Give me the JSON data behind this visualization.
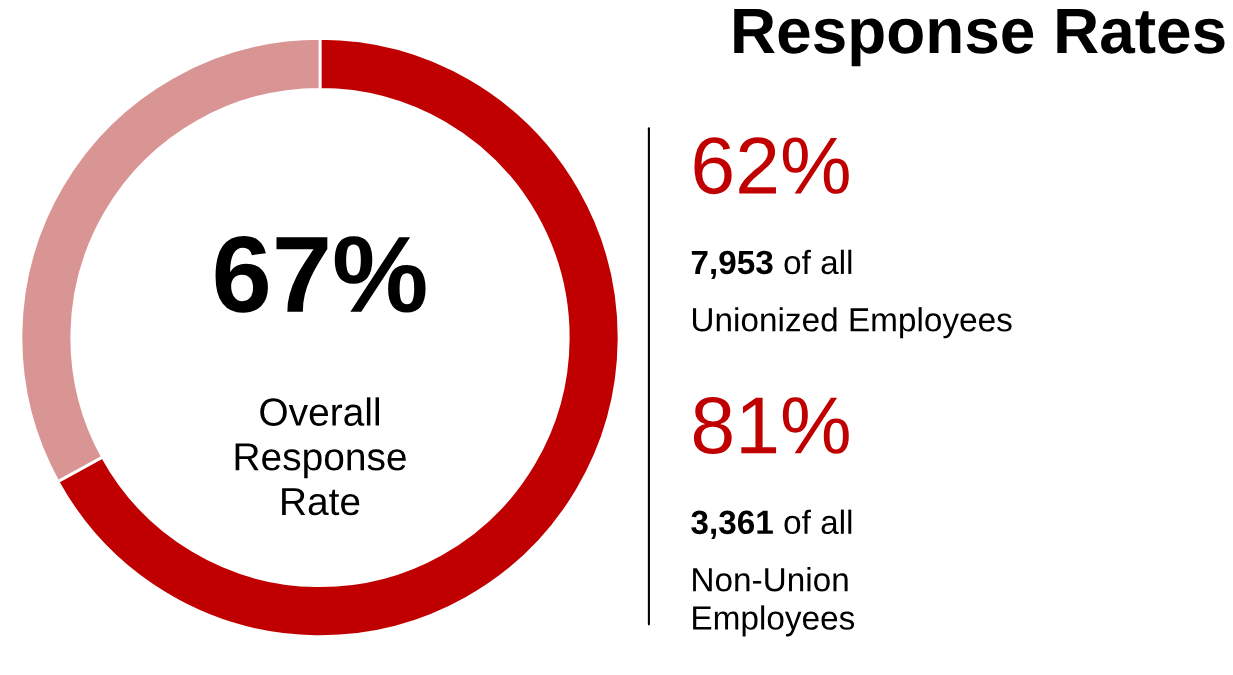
{
  "chart_data": [
    {
      "type": "donut",
      "categories": [
        null,
        null
      ],
      "values": [
        67,
        33
      ],
      "colors": [
        "#c00000",
        "#d99594"
      ],
      "annotations": [
        "67%",
        "Overall\nResponse\nRate"
      ]
    },
    {
      "type": "other",
      "title": "Response Rates",
      "annotations": [
        "62%",
        "7,953",
        "of all",
        "Unionized Employees",
        "81%",
        "3,361",
        "of all",
        "Non-Union\nEmployees"
      ]
    }
  ]
}
